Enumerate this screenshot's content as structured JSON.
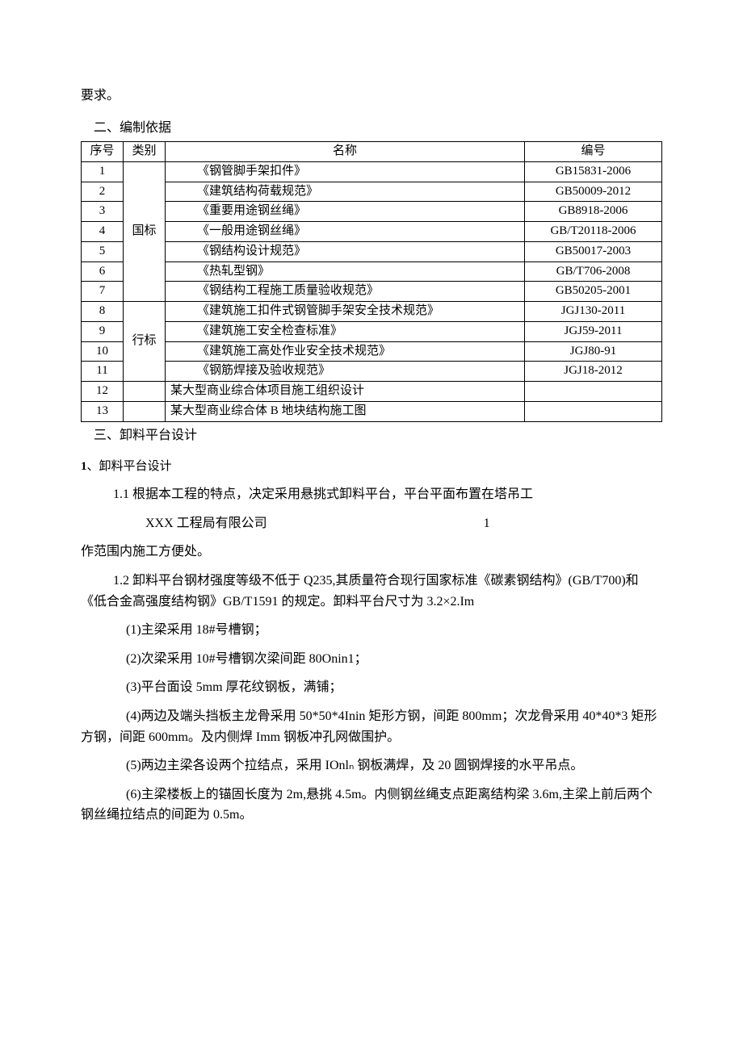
{
  "top_fragment": "要求。",
  "section2_heading": "二、编制依据",
  "table_headers": {
    "seq": "序号",
    "cat": "类别",
    "name": "名称",
    "code": "编号"
  },
  "cat_guobiao": "国标",
  "cat_hangbiao": "行标",
  "rows": [
    {
      "seq": "1",
      "name": "《钢管脚手架扣件》",
      "code": "GB15831-2006",
      "indent": true
    },
    {
      "seq": "2",
      "name": "《建筑结构荷载规范》",
      "code": "GB50009-2012",
      "indent": true
    },
    {
      "seq": "3",
      "name": "《重要用途钢丝绳》",
      "code": "GB8918-2006",
      "indent": true
    },
    {
      "seq": "4",
      "name": "《一般用途钢丝绳》",
      "code": "GB/T20118-2006",
      "indent": true
    },
    {
      "seq": "5",
      "name": "《钢结构设计规范》",
      "code": "GB50017-2003",
      "indent": true
    },
    {
      "seq": "6",
      "name": "《热轧型钢》",
      "code": "GB/T706-2008",
      "indent": true
    },
    {
      "seq": "7",
      "name": "《钢结构工程施工质量验收规范》",
      "code": "GB50205-2001",
      "indent": true
    },
    {
      "seq": "8",
      "name": "《建筑施工扣件式钢管脚手架安全技术规范》",
      "code": "JGJ130-2011",
      "indent": true
    },
    {
      "seq": "9",
      "name": "《建筑施工安全检查标准》",
      "code": "JGJ59-2011",
      "indent": true
    },
    {
      "seq": "10",
      "name": "《建筑施工高处作业安全技术规范》",
      "code": "JGJ80-91",
      "indent": true
    },
    {
      "seq": "11",
      "name": "《钢筋焊接及验收规范》",
      "code": "JGJ18-2012",
      "indent": true
    },
    {
      "seq": "12",
      "name": "某大型商业综合体项目施工组织设计",
      "code": "",
      "indent": false
    },
    {
      "seq": "13",
      "name": "某大型商业综合体 B 地块结构施工图",
      "code": "",
      "indent": false
    }
  ],
  "section3_heading": "三、卸料平台设计",
  "sub1_heading_num": "1",
  "sub1_heading_text": "、卸料平台设计",
  "p_1_1": "1.1 根据本工程的特点，决定采用悬挑式卸料平台，平台平面布置在塔吊工",
  "footer_company": "XXX 工程局有限公司",
  "footer_page": "1",
  "p_cont": "作范围内施工方便处。",
  "p_1_2": "1.2 卸料平台钢材强度等级不低于 Q235,其质量符合现行国家标准《碳素钢结构》(GB/T700)和《低合金高强度结构钢》GB/T1591 的规定。卸料平台尺寸为 3.2×2.Im",
  "p_i1": "(1)主梁采用 18#号槽钢；",
  "p_i2": "(2)次梁采用 10#号槽钢次梁间距 80Onin1；",
  "p_i3": "(3)平台面设 5mm 厚花纹钢板，满铺；",
  "p_i4": "(4)两边及端头挡板主龙骨采用 50*50*4Inin 矩形方钢，间距 800mm；次龙骨采用 40*40*3 矩形方钢，间距 600mm。及内侧焊 Imm 钢板冲孔网做围护。",
  "p_i5": "(5)两边主梁各设两个拉结点，采用 IOnlₙ 钢板满焊，及 20 圆钢焊接的水平吊点。",
  "p_i6": "(6)主梁楼板上的锚固长度为 2m,悬挑 4.5m。内侧钢丝绳支点距离结构梁 3.6m,主梁上前后两个钢丝绳拉结点的间距为 0.5m。"
}
